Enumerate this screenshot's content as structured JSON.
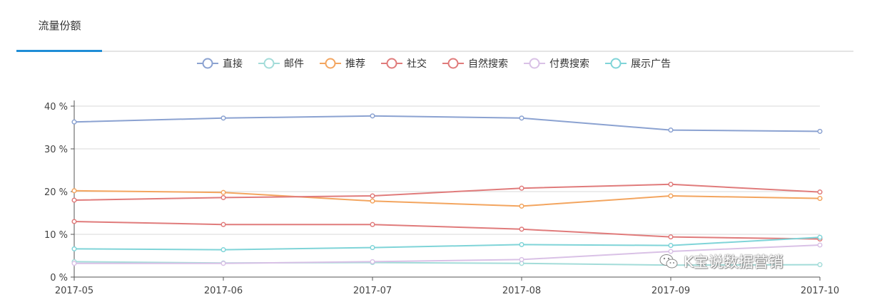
{
  "tabs": [
    {
      "label": "流量份额",
      "active": true
    }
  ],
  "accent_color": "#1f8dd6",
  "watermark": {
    "text": "K宝说数据营销",
    "icon": "wechat-icon"
  },
  "chart_data": {
    "type": "line",
    "categories": [
      "2017-05",
      "2017-06",
      "2017-07",
      "2017-08",
      "2017-09",
      "2017-10"
    ],
    "ylim": [
      0,
      40
    ],
    "yticks": [
      0,
      10,
      20,
      30,
      40
    ],
    "ytick_labels": [
      "0 %",
      "10 %",
      "20 %",
      "30 %",
      "40 %"
    ],
    "grid": true,
    "legend_position": "top-center",
    "series": [
      {
        "name": "直接",
        "color": "#8ba2d1",
        "values": [
          36.3,
          37.2,
          37.7,
          37.2,
          34.4,
          34.1
        ]
      },
      {
        "name": "邮件",
        "color": "#a3dcd9",
        "values": [
          3.6,
          3.3,
          3.4,
          3.2,
          2.8,
          2.9
        ]
      },
      {
        "name": "推荐",
        "color": "#f3a55f",
        "values": [
          20.2,
          19.8,
          17.8,
          16.6,
          19.0,
          18.4
        ]
      },
      {
        "name": "社交",
        "color": "#e07b7b",
        "values": [
          13.0,
          12.3,
          12.3,
          11.2,
          9.4,
          8.9
        ]
      },
      {
        "name": "自然搜索",
        "color": "#e07b7b",
        "values": [
          18.0,
          18.6,
          19.0,
          20.8,
          21.7,
          19.9
        ]
      },
      {
        "name": "付费搜索",
        "color": "#d9c1e6",
        "values": [
          3.2,
          3.2,
          3.6,
          4.1,
          6.0,
          7.5
        ]
      },
      {
        "name": "展示广告",
        "color": "#7fd4d8",
        "values": [
          6.6,
          6.4,
          6.9,
          7.6,
          7.4,
          9.3
        ]
      }
    ]
  }
}
